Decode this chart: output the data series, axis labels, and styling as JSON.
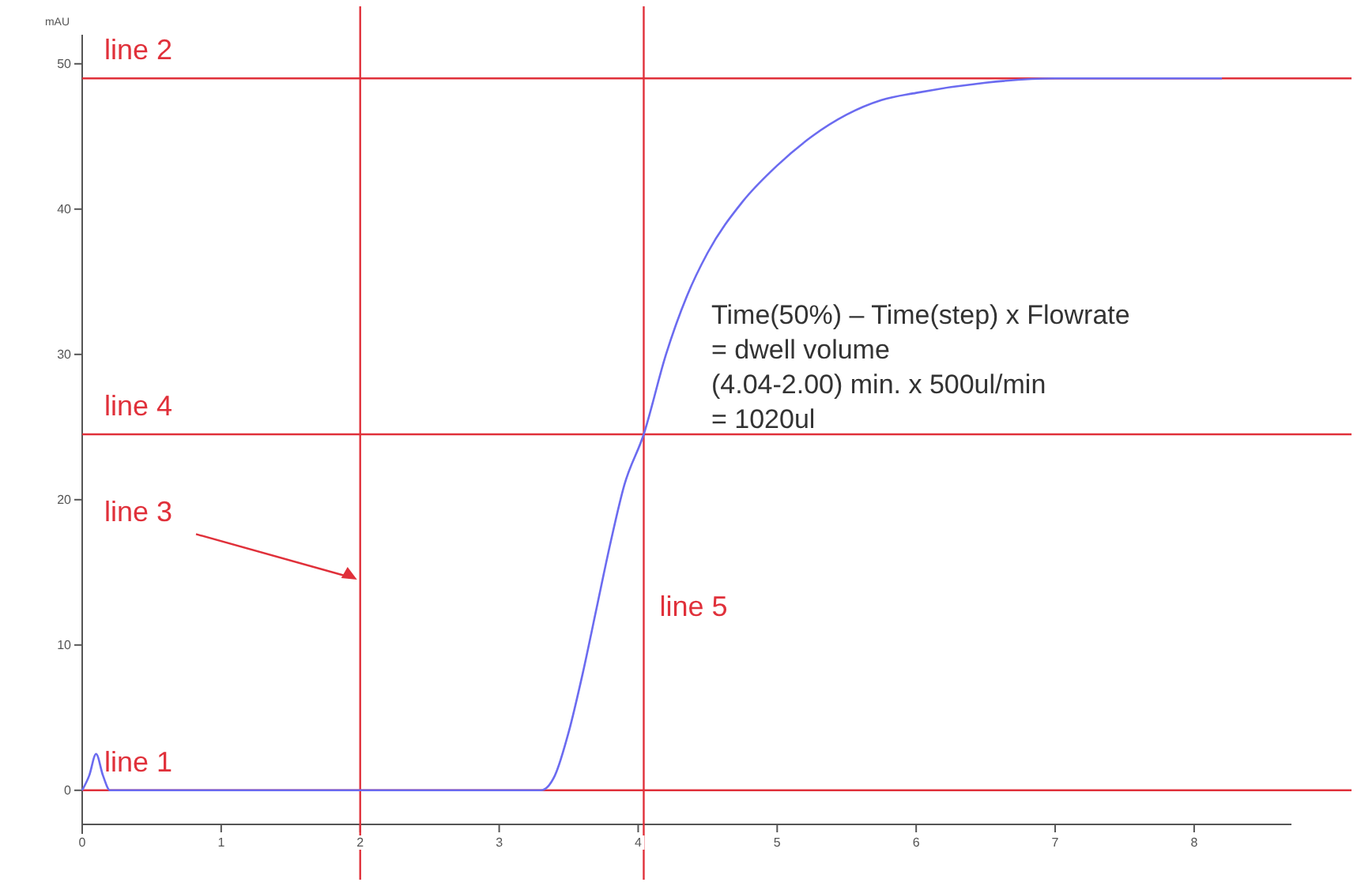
{
  "chart_data": {
    "type": "line",
    "ylabel": "mAU",
    "x": [
      0,
      0.05,
      0.1,
      0.15,
      0.2,
      0.5,
      1,
      2,
      3,
      3.3,
      3.4,
      3.5,
      3.6,
      3.7,
      3.8,
      3.9,
      4.04,
      4.2,
      4.35,
      4.5,
      4.75,
      5,
      5.25,
      5.5,
      5.75,
      6,
      6.5,
      7,
      7.5,
      8.2
    ],
    "series": [
      {
        "color": "#6b6bf0",
        "values": [
          0,
          1,
          2.5,
          1,
          0,
          0,
          0,
          0,
          0,
          0,
          1,
          4,
          8,
          12.5,
          17,
          21,
          24.5,
          30,
          34,
          37,
          40.5,
          43,
          45,
          46.5,
          47.5,
          48,
          48.7,
          49,
          49,
          49
        ]
      }
    ],
    "xlim": [
      0,
      8.7
    ],
    "ylim": [
      -3,
      52
    ],
    "xticks": [
      0,
      1,
      2,
      3,
      4,
      5,
      6,
      7,
      8
    ],
    "yticks": [
      0,
      10,
      20,
      30,
      40,
      50
    ],
    "ref_lines": [
      {
        "axis": "y",
        "value": 0,
        "label": "line 1",
        "color": "#e0303a"
      },
      {
        "axis": "y",
        "value": 49,
        "label": "line 2",
        "color": "#e0303a"
      },
      {
        "axis": "x",
        "value": 2,
        "label": "line 3",
        "color": "#e0303a"
      },
      {
        "axis": "y",
        "value": 24.5,
        "label": "line 4",
        "color": "#e0303a"
      },
      {
        "axis": "x",
        "value": 4.04,
        "label": "line 5",
        "color": "#e0303a"
      }
    ],
    "annotations": [
      "Time(50%) – Time(step) x Flowrate",
      "= dwell volume",
      "(4.04-2.00) min. x 500ul/min",
      "= 1020ul"
    ],
    "line_style": "solid",
    "marker": "none"
  }
}
